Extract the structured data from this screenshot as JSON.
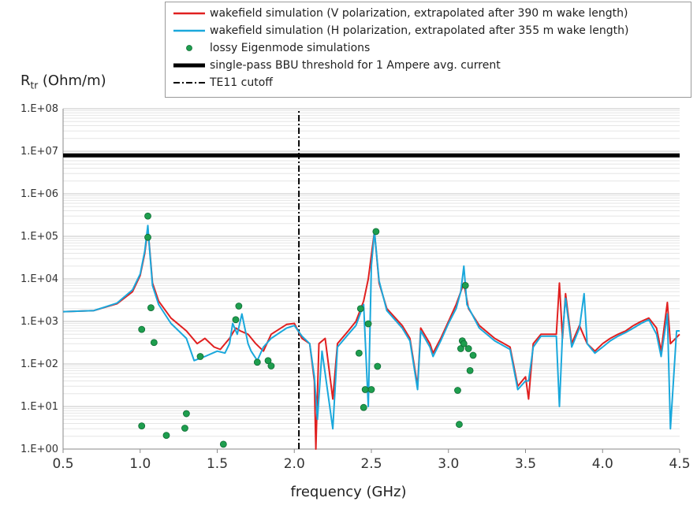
{
  "chart_data": {
    "type": "line",
    "ylabel_main": "R",
    "ylabel_sub": "tr",
    "ylabel_unit": "(Ohm/m)",
    "xlabel": "frequency (GHz)",
    "xlim": [
      0.5,
      4.5
    ],
    "ylim_log10": [
      0,
      8
    ],
    "y_scale": "log",
    "grid": "horizontal minor and major lines",
    "legend_position": "top",
    "x_ticks": [
      "0.5",
      "1.0",
      "1.5",
      "2.0",
      "2.5",
      "3.0",
      "3.5",
      "4.0",
      "4.5"
    ],
    "y_ticks": [
      "1.E+00",
      "1.E+01",
      "1.E+02",
      "1.E+03",
      "1.E+04",
      "1.E+05",
      "1.E+06",
      "1.E+07",
      "1.E+08"
    ],
    "legend": [
      {
        "label": "wakefield simulation (V polarization, extrapolated after 390 m wake length)",
        "kind": "line",
        "color": "#e02020"
      },
      {
        "label": "wakefield simulation (H polarization, extrapolated after 355 m wake length)",
        "kind": "line",
        "color": "#1aa8dc"
      },
      {
        "label": "lossy Eigenmode simulations",
        "kind": "marker",
        "color": "#1e9e4e"
      },
      {
        "label": "single-pass BBU threshold for 1 Ampere avg. current",
        "kind": "thick-line",
        "color": "#000000"
      },
      {
        "label": "TE11 cutoff",
        "kind": "dash-dot",
        "color": "#000000"
      }
    ],
    "series": [
      {
        "name": "wakefield simulation (V polarization, extrapolated after 390 m wake length)",
        "color": "#e02020",
        "points": [
          [
            0.5,
            1700
          ],
          [
            0.7,
            1800
          ],
          [
            0.85,
            2600
          ],
          [
            0.95,
            5000
          ],
          [
            1.0,
            12000
          ],
          [
            1.03,
            40000
          ],
          [
            1.05,
            150000
          ],
          [
            1.06,
            60000
          ],
          [
            1.08,
            8000
          ],
          [
            1.12,
            3000
          ],
          [
            1.2,
            1200
          ],
          [
            1.3,
            600
          ],
          [
            1.37,
            300
          ],
          [
            1.42,
            400
          ],
          [
            1.48,
            250
          ],
          [
            1.52,
            220
          ],
          [
            1.58,
            400
          ],
          [
            1.62,
            700
          ],
          [
            1.65,
            600
          ],
          [
            1.7,
            500
          ],
          [
            1.75,
            300
          ],
          [
            1.8,
            200
          ],
          [
            1.85,
            500
          ],
          [
            1.95,
            850
          ],
          [
            2.0,
            900
          ],
          [
            2.05,
            400
          ],
          [
            2.1,
            300
          ],
          [
            2.13,
            40
          ],
          [
            2.14,
            1.0
          ],
          [
            2.16,
            300
          ],
          [
            2.2,
            400
          ],
          [
            2.25,
            15
          ],
          [
            2.28,
            300
          ],
          [
            2.35,
            600
          ],
          [
            2.4,
            1000
          ],
          [
            2.45,
            3000
          ],
          [
            2.48,
            10000
          ],
          [
            2.52,
            130000
          ],
          [
            2.55,
            8000
          ],
          [
            2.6,
            2000
          ],
          [
            2.7,
            800
          ],
          [
            2.75,
            400
          ],
          [
            2.8,
            30
          ],
          [
            2.82,
            700
          ],
          [
            2.88,
            300
          ],
          [
            2.9,
            180
          ],
          [
            2.95,
            400
          ],
          [
            3.0,
            1000
          ],
          [
            3.05,
            2500
          ],
          [
            3.08,
            5000
          ],
          [
            3.1,
            8000
          ],
          [
            3.13,
            2000
          ],
          [
            3.2,
            800
          ],
          [
            3.3,
            400
          ],
          [
            3.4,
            250
          ],
          [
            3.45,
            30
          ],
          [
            3.5,
            50
          ],
          [
            3.52,
            15
          ],
          [
            3.55,
            300
          ],
          [
            3.6,
            500
          ],
          [
            3.7,
            500
          ],
          [
            3.72,
            8000
          ],
          [
            3.74,
            400
          ],
          [
            3.76,
            4500
          ],
          [
            3.8,
            300
          ],
          [
            3.85,
            800
          ],
          [
            3.9,
            300
          ],
          [
            3.95,
            200
          ],
          [
            4.0,
            300
          ],
          [
            4.05,
            400
          ],
          [
            4.1,
            500
          ],
          [
            4.15,
            600
          ],
          [
            4.2,
            800
          ],
          [
            4.25,
            1000
          ],
          [
            4.3,
            1200
          ],
          [
            4.35,
            700
          ],
          [
            4.38,
            200
          ],
          [
            4.42,
            2800
          ],
          [
            4.44,
            300
          ],
          [
            4.5,
            500
          ]
        ]
      },
      {
        "name": "wakefield simulation (H polarization, extrapolated after 355 m wake length)",
        "color": "#1aa8dc",
        "points": [
          [
            0.5,
            1700
          ],
          [
            0.7,
            1800
          ],
          [
            0.85,
            2700
          ],
          [
            0.95,
            5500
          ],
          [
            1.0,
            13000
          ],
          [
            1.03,
            45000
          ],
          [
            1.05,
            180000
          ],
          [
            1.06,
            55000
          ],
          [
            1.08,
            7000
          ],
          [
            1.12,
            2500
          ],
          [
            1.2,
            900
          ],
          [
            1.3,
            400
          ],
          [
            1.35,
            120
          ],
          [
            1.42,
            150
          ],
          [
            1.5,
            200
          ],
          [
            1.55,
            180
          ],
          [
            1.58,
            300
          ],
          [
            1.6,
            900
          ],
          [
            1.63,
            500
          ],
          [
            1.66,
            1500
          ],
          [
            1.7,
            300
          ],
          [
            1.72,
            200
          ],
          [
            1.76,
            120
          ],
          [
            1.8,
            250
          ],
          [
            1.85,
            400
          ],
          [
            1.95,
            700
          ],
          [
            2.0,
            800
          ],
          [
            2.05,
            450
          ],
          [
            2.1,
            300
          ],
          [
            2.13,
            50
          ],
          [
            2.15,
            5
          ],
          [
            2.18,
            200
          ],
          [
            2.2,
            60
          ],
          [
            2.25,
            3
          ],
          [
            2.28,
            250
          ],
          [
            2.35,
            500
          ],
          [
            2.4,
            800
          ],
          [
            2.45,
            2500
          ],
          [
            2.48,
            10
          ],
          [
            2.5,
            20000
          ],
          [
            2.52,
            130000
          ],
          [
            2.55,
            9000
          ],
          [
            2.6,
            1800
          ],
          [
            2.7,
            700
          ],
          [
            2.75,
            350
          ],
          [
            2.8,
            25
          ],
          [
            2.82,
            600
          ],
          [
            2.88,
            250
          ],
          [
            2.9,
            150
          ],
          [
            2.95,
            350
          ],
          [
            3.0,
            900
          ],
          [
            3.05,
            2000
          ],
          [
            3.08,
            5000
          ],
          [
            3.1,
            20000
          ],
          [
            3.12,
            2500
          ],
          [
            3.2,
            700
          ],
          [
            3.3,
            350
          ],
          [
            3.4,
            220
          ],
          [
            3.45,
            25
          ],
          [
            3.5,
            40
          ],
          [
            3.52,
            40
          ],
          [
            3.55,
            250
          ],
          [
            3.6,
            450
          ],
          [
            3.7,
            450
          ],
          [
            3.72,
            10
          ],
          [
            3.74,
            500
          ],
          [
            3.76,
            3500
          ],
          [
            3.8,
            250
          ],
          [
            3.85,
            700
          ],
          [
            3.88,
            4500
          ],
          [
            3.9,
            300
          ],
          [
            3.95,
            180
          ],
          [
            4.0,
            250
          ],
          [
            4.05,
            350
          ],
          [
            4.1,
            450
          ],
          [
            4.15,
            550
          ],
          [
            4.2,
            700
          ],
          [
            4.25,
            900
          ],
          [
            4.3,
            1100
          ],
          [
            4.35,
            500
          ],
          [
            4.38,
            150
          ],
          [
            4.42,
            1500
          ],
          [
            4.44,
            3
          ],
          [
            4.48,
            600
          ],
          [
            4.5,
            600
          ]
        ]
      },
      {
        "name": "lossy Eigenmode simulations",
        "color": "#1e9e4e",
        "points": [
          [
            1.01,
            3.5
          ],
          [
            1.01,
            650
          ],
          [
            1.05,
            300000
          ],
          [
            1.05,
            95000
          ],
          [
            1.07,
            2100
          ],
          [
            1.09,
            320
          ],
          [
            1.17,
            2.1
          ],
          [
            1.29,
            3.1
          ],
          [
            1.3,
            6.8
          ],
          [
            1.39,
            150
          ],
          [
            1.54,
            1.3
          ],
          [
            1.62,
            1100
          ],
          [
            1.64,
            2300
          ],
          [
            1.76,
            110
          ],
          [
            1.83,
            120
          ],
          [
            1.85,
            90
          ],
          [
            2.42,
            180
          ],
          [
            2.43,
            2000
          ],
          [
            2.45,
            9.5
          ],
          [
            2.46,
            25
          ],
          [
            2.48,
            880
          ],
          [
            2.5,
            25
          ],
          [
            2.53,
            130000
          ],
          [
            2.54,
            88
          ],
          [
            3.06,
            24
          ],
          [
            3.07,
            3.8
          ],
          [
            3.08,
            230
          ],
          [
            3.09,
            350
          ],
          [
            3.1,
            300
          ],
          [
            3.11,
            7000
          ],
          [
            3.13,
            230
          ],
          [
            3.14,
            70
          ],
          [
            3.16,
            160
          ]
        ]
      },
      {
        "name": "single-pass BBU threshold for 1 Ampere avg. current",
        "color": "#000000",
        "points": [
          [
            0.5,
            8000000
          ],
          [
            4.5,
            8000000
          ]
        ]
      },
      {
        "name": "TE11 cutoff",
        "color": "#000000",
        "points": [
          [
            2.03,
            1
          ],
          [
            2.03,
            100000000
          ]
        ]
      }
    ]
  }
}
